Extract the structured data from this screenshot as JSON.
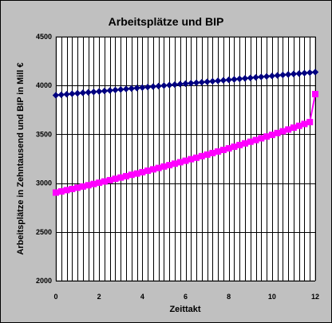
{
  "chart_data": {
    "type": "line",
    "title": "Arbeitsplätze und BIP",
    "xlabel": "Zeittakt",
    "ylabel": "Arbeitsplätze in Zehntausend und BIP in Mill €",
    "xlim": [
      0,
      12
    ],
    "ylim": [
      2000,
      4500
    ],
    "xticks": [
      0,
      2,
      4,
      6,
      8,
      10,
      12
    ],
    "yticks": [
      2000,
      2500,
      3000,
      3500,
      4000,
      4500
    ],
    "grid": true,
    "legend": "none",
    "colors": {
      "background": "#c0c0c0",
      "plot_area": "#ffffff",
      "series_1": "#000080",
      "series_2": "#ff00ff"
    },
    "x": [
      0,
      0.25,
      0.5,
      0.75,
      1,
      1.25,
      1.5,
      1.75,
      2,
      2.25,
      2.5,
      2.75,
      3,
      3.25,
      3.5,
      3.75,
      4,
      4.25,
      4.5,
      4.75,
      5,
      5.25,
      5.5,
      5.75,
      6,
      6.25,
      6.5,
      6.75,
      7,
      7.25,
      7.5,
      7.75,
      8,
      8.25,
      8.5,
      8.75,
      9,
      9.25,
      9.5,
      9.75,
      10,
      10.25,
      10.5,
      10.75,
      11,
      11.25,
      11.5,
      11.75,
      12
    ],
    "series": [
      {
        "marker": "diamond",
        "values": [
          3900,
          3905,
          3910,
          3915,
          3920,
          3925,
          3930,
          3934,
          3939,
          3944,
          3949,
          3954,
          3959,
          3964,
          3969,
          3974,
          3979,
          3984,
          3989,
          3994,
          3999,
          4004,
          4009,
          4014,
          4019,
          4023,
          4028,
          4033,
          4038,
          4043,
          4048,
          4053,
          4058,
          4063,
          4068,
          4073,
          4078,
          4083,
          4088,
          4093,
          4098,
          4103,
          4108,
          4113,
          4118,
          4122,
          4127,
          4132,
          4137
        ]
      },
      {
        "marker": "square",
        "values": [
          2903,
          2915,
          2928,
          2940,
          2953,
          2965,
          2978,
          2991,
          3004,
          3017,
          3030,
          3044,
          3057,
          3071,
          3085,
          3098,
          3112,
          3127,
          3141,
          3155,
          3170,
          3184,
          3199,
          3214,
          3229,
          3245,
          3260,
          3276,
          3292,
          3308,
          3324,
          3340,
          3356,
          3373,
          3390,
          3407,
          3424,
          3441,
          3459,
          3477,
          3494,
          3513,
          3531,
          3549,
          3568,
          3587,
          3606,
          3625,
          3912
        ]
      }
    ]
  }
}
